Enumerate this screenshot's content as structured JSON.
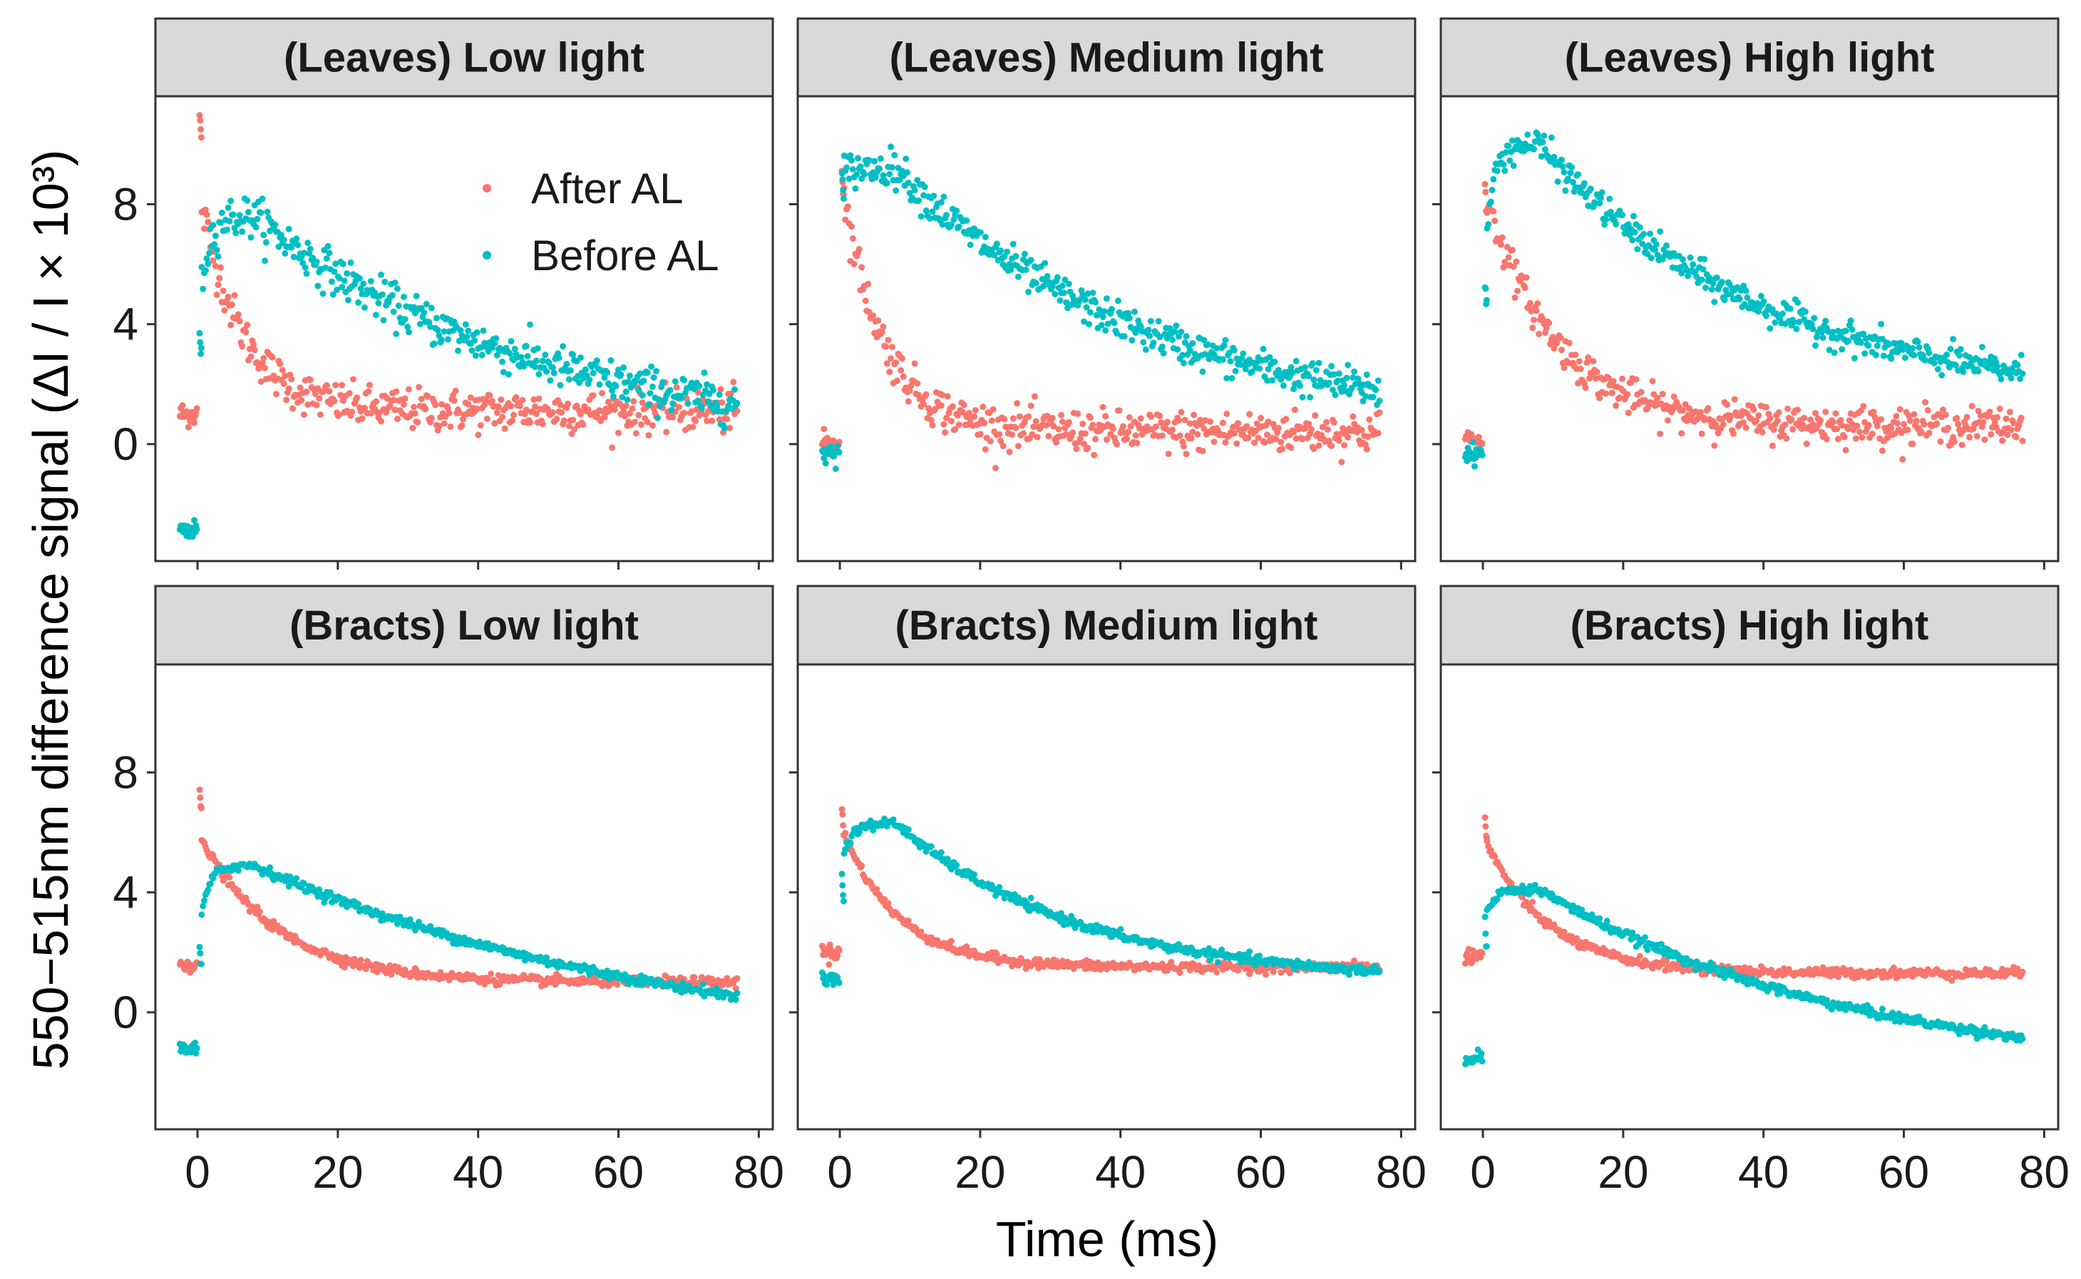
{
  "chart_data": {
    "type": "scatter",
    "xlabel": "Time (ms)",
    "ylabel": "550−515nm difference signal (ΔI / I × 10³)",
    "xlim": [
      -6,
      82
    ],
    "xticks": [
      0,
      20,
      40,
      60,
      80
    ],
    "yticks": [
      0,
      4,
      8
    ],
    "legend": {
      "placement": "inside top-right of first panel",
      "entries": [
        {
          "name": "After AL",
          "color": "#F8766D"
        },
        {
          "name": "Before AL",
          "color": "#00BFC4"
        }
      ]
    },
    "panels": [
      {
        "title": "(Leaves) Low light",
        "ylim": [
          -3.9,
          11.6
        ],
        "series": [
          {
            "name": "After AL",
            "color": "#F8766D",
            "pre": 1.0,
            "spike": 11.0,
            "ss": 1.1,
            "amp": 7.6,
            "tau": 6,
            "noise": 0.35
          },
          {
            "name": "Before AL",
            "color": "#00BFC4",
            "pre": -2.9,
            "spike": 3.8,
            "ss": 0.0,
            "peak": 7.6,
            "tau": 40,
            "noise": 0.35
          }
        ]
      },
      {
        "title": "(Leaves) Medium light",
        "ylim": [
          -3.9,
          11.6
        ],
        "series": [
          {
            "name": "After AL",
            "color": "#F8766D",
            "pre": 0.0,
            "spike": 9.2,
            "ss": 0.4,
            "amp": 8.6,
            "tau": 6,
            "noise": 0.35
          },
          {
            "name": "Before AL",
            "color": "#00BFC4",
            "pre": -0.3,
            "spike": 9.0,
            "ss": 0.5,
            "peak": 9.2,
            "tau": 36,
            "noise": 0.3
          }
        ]
      },
      {
        "title": "(Leaves) High light",
        "ylim": [
          -3.9,
          11.6
        ],
        "series": [
          {
            "name": "After AL",
            "color": "#F8766D",
            "pre": 0.2,
            "spike": 8.5,
            "ss": 0.6,
            "amp": 8.0,
            "tau": 10,
            "noise": 0.3
          },
          {
            "name": "Before AL",
            "color": "#00BFC4",
            "pre": -0.3,
            "spike": 5.4,
            "ss": 1.4,
            "peak": 10.0,
            "tau": 32,
            "noise": 0.25
          }
        ]
      },
      {
        "title": "(Bracts) Low light",
        "ylim": [
          -3.9,
          11.6
        ],
        "series": [
          {
            "name": "After AL",
            "color": "#F8766D",
            "pre": 1.6,
            "spike": 7.4,
            "ss": 1.0,
            "amp": 5.0,
            "tau": 11,
            "noise": 0.08
          },
          {
            "name": "Before AL",
            "color": "#00BFC4",
            "pre": -1.2,
            "spike": 2.2,
            "ss": -1.6,
            "peak": 4.9,
            "tau": 62,
            "noise": 0.08
          }
        ]
      },
      {
        "title": "(Bracts) Medium light",
        "ylim": [
          -3.9,
          11.6
        ],
        "series": [
          {
            "name": "After AL",
            "color": "#F8766D",
            "pre": 2.0,
            "spike": 6.8,
            "ss": 1.5,
            "amp": 4.8,
            "tau": 8,
            "noise": 0.08
          },
          {
            "name": "Before AL",
            "color": "#00BFC4",
            "pre": 1.1,
            "spike": 4.6,
            "ss": 1.0,
            "peak": 6.3,
            "tau": 26,
            "noise": 0.08
          }
        ]
      },
      {
        "title": "(Bracts) High light",
        "ylim": [
          -3.9,
          11.6
        ],
        "series": [
          {
            "name": "After AL",
            "color": "#F8766D",
            "pre": 1.9,
            "spike": 6.6,
            "ss": 1.3,
            "amp": 4.6,
            "tau": 9,
            "noise": 0.08
          },
          {
            "name": "Before AL",
            "color": "#00BFC4",
            "pre": -1.5,
            "spike": 3.0,
            "ss": -2.2,
            "peak": 4.1,
            "tau": 45,
            "noise": 0.08
          }
        ]
      }
    ]
  }
}
